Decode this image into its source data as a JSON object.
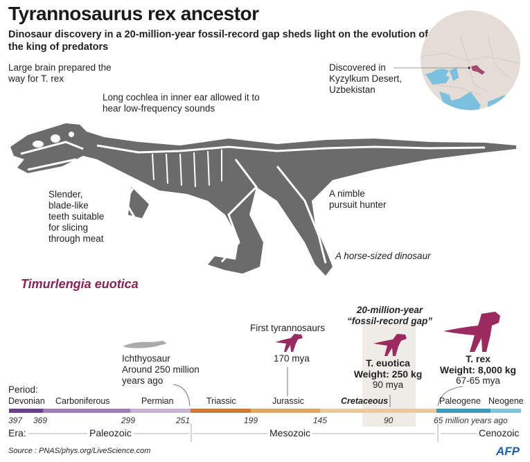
{
  "header": {
    "title": "Tyrannosaurus rex ancestor",
    "subtitle": "Dinosaur discovery in a 20-million-year fossil-record gap sheds light on the evolution of the king of predators"
  },
  "annotations": {
    "brain": "Large brain prepared the way for T. rex",
    "cochlea": "Long cochlea in inner ear allowed it to hear low-frequency sounds",
    "teeth": [
      "Slender,",
      "blade-like",
      "teeth suitable",
      "for slicing",
      "through meat"
    ],
    "hunter": [
      "A nimble",
      "pursuit hunter"
    ],
    "size": "A horse-sized dinosaur",
    "discovered": [
      "Discovered in",
      "Kyzylkum Desert,",
      "Uzbekistan"
    ]
  },
  "species_name": "Timurlengia euotica",
  "timeline": {
    "gap_label": [
      "20-million-year",
      "“fossil-record gap”"
    ],
    "ichthyosaur": [
      "Ichthyosaur",
      "Around 250 million",
      "years ago"
    ],
    "first_tyrannosaurs": {
      "label": "First tyrannosaurs",
      "date": "170 mya"
    },
    "t_euotica": {
      "name": "T. euotica",
      "weight": "Weight: 250 kg",
      "date": "90 mya"
    },
    "t_rex": {
      "name": "T. rex",
      "weight": "Weight: 8,000 kg",
      "date": "67-65 mya"
    },
    "period_label": "Period:",
    "periods": [
      {
        "name": "Devonian",
        "color": "#6b3f8f"
      },
      {
        "name": "Carboniferous",
        "color": "#9c7db6"
      },
      {
        "name": "Permian",
        "color": "#c6b0d6"
      },
      {
        "name": "Triassic",
        "color": "#d07a35"
      },
      {
        "name": "Jurassic",
        "color": "#e3a363"
      },
      {
        "name": "Cretaceous",
        "color": "#edc89a"
      },
      {
        "name": "Paleogene",
        "color": "#3a9bbf"
      },
      {
        "name": "Neogene",
        "color": "#80c5dd"
      }
    ],
    "ticks": [
      "397",
      "369",
      "299",
      "251",
      "199",
      "145",
      "90",
      "65 million years ago"
    ],
    "era_label": "Era:",
    "eras": [
      "Paleozoic",
      "Mesozoic",
      "Cenozoic"
    ]
  },
  "colors": {
    "accent": "#8b2252",
    "skeleton": "#6b6b6b",
    "map_land": "#e4ddd5",
    "map_water": "#7cc0e0",
    "highlight": "#a3476e"
  },
  "footer": {
    "source": "Source : PNAS/phys.org/LiveScience.com",
    "logo": "AFP"
  }
}
